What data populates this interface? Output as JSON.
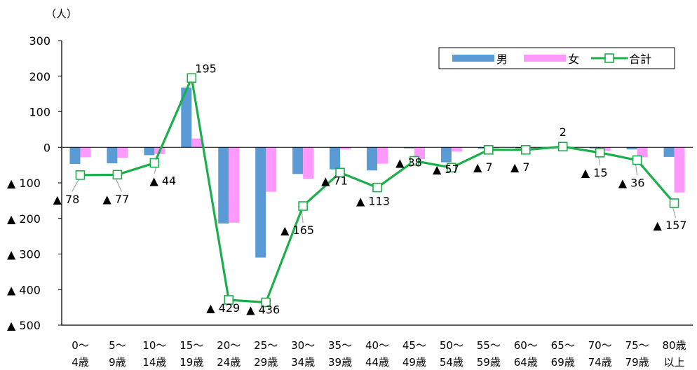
{
  "chart_data": {
    "type": "bar",
    "unit_label": "（人）",
    "categories": [
      [
        "0～",
        "4歳"
      ],
      [
        "5～",
        "9歳"
      ],
      [
        "10～",
        "14歳"
      ],
      [
        "15～",
        "19歳"
      ],
      [
        "20～",
        "24歳"
      ],
      [
        "25～",
        "29歳"
      ],
      [
        "30～",
        "34歳"
      ],
      [
        "35～",
        "39歳"
      ],
      [
        "40～",
        "44歳"
      ],
      [
        "45～",
        "49歳"
      ],
      [
        "50～",
        "54歳"
      ],
      [
        "55～",
        "59歳"
      ],
      [
        "60～",
        "64歳"
      ],
      [
        "65～",
        "69歳"
      ],
      [
        "70～",
        "74歳"
      ],
      [
        "75～",
        "79歳"
      ],
      [
        "80歳",
        "以上"
      ]
    ],
    "y_ticks": [
      {
        "value": 300,
        "label": "300"
      },
      {
        "value": 200,
        "label": "200"
      },
      {
        "value": 100,
        "label": "100"
      },
      {
        "value": 0,
        "label": "0"
      },
      {
        "value": -100,
        "label": "▲ 100"
      },
      {
        "value": -200,
        "label": "▲ 200"
      },
      {
        "value": -300,
        "label": "▲ 300"
      },
      {
        "value": -400,
        "label": "▲ 400"
      },
      {
        "value": -500,
        "label": "▲ 500"
      }
    ],
    "ylim": [
      -500,
      300
    ],
    "grid": false,
    "legend_position": "top-right",
    "series": [
      {
        "name": "男",
        "kind": "bar",
        "color": "#5B9BD5",
        "values": [
          -47,
          -45,
          -22,
          168,
          -214,
          -310,
          -75,
          -62,
          -65,
          -3,
          -42,
          -4,
          -3,
          1,
          -3,
          -6,
          -27
        ]
      },
      {
        "name": "女",
        "kind": "bar",
        "color": "#FF99FF",
        "values": [
          -28,
          -29,
          -19,
          25,
          -212,
          -125,
          -88,
          -6,
          -46,
          -33,
          -12,
          -3,
          -4,
          1,
          -10,
          -28,
          -127
        ]
      },
      {
        "name": "合計",
        "kind": "line",
        "color": "#1AAF4A",
        "values": [
          -78,
          -77,
          -44,
          195,
          -429,
          -436,
          -165,
          -71,
          -113,
          -38,
          -57,
          -7,
          -7,
          2,
          -15,
          -36,
          -157
        ],
        "data_labels": [
          "▲ 78",
          "▲ 77",
          "▲ 44",
          "195",
          "▲ 429",
          "▲ 436",
          "▲ 165",
          "▲ 71",
          "▲ 113",
          "▲ 38",
          "▲ 57",
          "▲ 7",
          "▲ 7",
          "2",
          "▲ 15",
          "▲ 36",
          "▲ 157"
        ]
      }
    ]
  }
}
